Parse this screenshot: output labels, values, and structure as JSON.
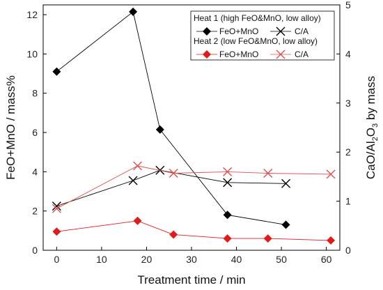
{
  "chart_data": {
    "type": "line",
    "xlabel": "Treatment time / min",
    "ylabel_left": "FeO+MnO / mass%",
    "ylabel_right_parts": [
      "CaO/Al",
      "2",
      "O",
      "3",
      " by mass"
    ],
    "xlim": [
      -3,
      63
    ],
    "ylim_left": [
      0,
      12.5
    ],
    "ylim_right": [
      0,
      5
    ],
    "x_ticks": [
      0,
      10,
      20,
      30,
      40,
      50,
      60
    ],
    "y_left_ticks": [
      0,
      2,
      4,
      6,
      8,
      10,
      12
    ],
    "y_right_ticks": [
      0,
      1,
      2,
      3,
      4,
      5
    ],
    "grid": false,
    "legend_placement": "top-right",
    "legend": {
      "heat1_title": "Heat 1 (high FeO&MnO, low alloy)",
      "heat2_title": "Heat 2 (low FeO&MnO, low alloy)",
      "feo_label": "FeO+MnO",
      "ca_label": "C/A"
    },
    "series": [
      {
        "key": "heat1_feo",
        "axis": "left",
        "marker": "diamond",
        "color": "#000000",
        "x": [
          0,
          17,
          23,
          38,
          51
        ],
        "y": [
          9.1,
          12.15,
          6.15,
          1.8,
          1.3
        ]
      },
      {
        "key": "heat1_ca",
        "axis": "right",
        "marker": "x",
        "color": "#000000",
        "x": [
          0,
          17,
          23,
          38,
          51
        ],
        "y": [
          0.9,
          1.42,
          1.63,
          1.38,
          1.36
        ]
      },
      {
        "key": "heat2_feo",
        "axis": "left",
        "marker": "diamond",
        "color": "#e31a1c",
        "x": [
          0,
          18,
          26,
          38,
          47,
          61
        ],
        "y": [
          0.95,
          1.5,
          0.8,
          0.6,
          0.6,
          0.5
        ]
      },
      {
        "key": "heat2_ca",
        "axis": "right",
        "marker": "x",
        "color": "#e05050",
        "x": [
          0,
          18,
          26,
          38,
          47,
          61
        ],
        "y": [
          0.85,
          1.72,
          1.57,
          1.6,
          1.57,
          1.55
        ]
      }
    ]
  }
}
